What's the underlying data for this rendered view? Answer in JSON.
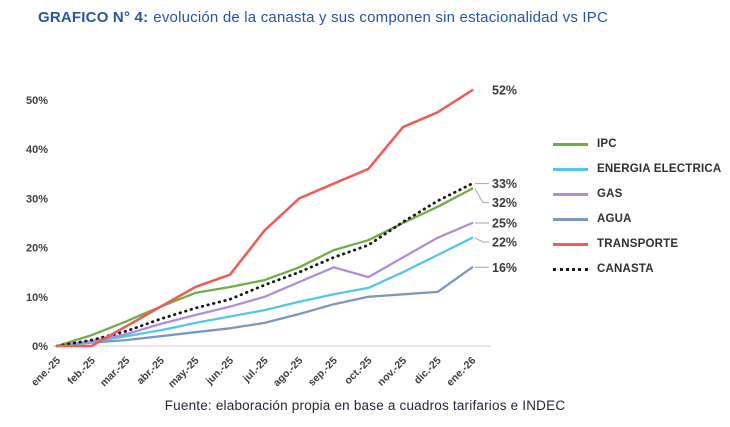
{
  "title": {
    "prefix": "GRAFICO N° 4:",
    "rest": "evolución de la canasta y sus componen sin estacionalidad vs IPC"
  },
  "footer": "Fuente: elaboración propia en base a cuadros tarifarios e INDEC",
  "colors": {
    "title_blue": "#2456a6",
    "axis_line": "#d8d8d8",
    "leader_line": "#a6a6a6",
    "tick_text": "#404040",
    "end_label_text": "#3b3b3b"
  },
  "chart_data": {
    "type": "line",
    "title": "GRAFICO N° 4: evolución de la canasta y sus componen sin estacionalidad vs IPC",
    "xlabel": "",
    "ylabel": "",
    "ylim": [
      0,
      55
    ],
    "grid": false,
    "legend_position": "right",
    "yticks": [
      "0%",
      "10%",
      "20%",
      "30%",
      "40%",
      "50%"
    ],
    "categories": [
      "ene.-25",
      "feb.-25",
      "mar.-25",
      "abr.-25",
      "may.-25",
      "jun.-25",
      "jul.-25",
      "ago.-25",
      "sep.-25",
      "oct.-25",
      "nov.-25",
      "dic.-25",
      "ene.-26"
    ],
    "series": [
      {
        "name": "IPC",
        "color": "#70ad47",
        "style": "solid",
        "end_label": "32%",
        "values": [
          0,
          2.2,
          5,
          8,
          10.8,
          12,
          13.4,
          16,
          19.5,
          21.5,
          25,
          28.3,
          32
        ]
      },
      {
        "name": "ENERGIA ELECTRICA",
        "color": "#54c6ea",
        "style": "solid",
        "end_label": "22%",
        "values": [
          0,
          0.8,
          2,
          3.2,
          4.7,
          6,
          7.3,
          9,
          10.5,
          11.8,
          15,
          18.5,
          22
        ]
      },
      {
        "name": "GAS",
        "color": "#b18cd9",
        "style": "solid",
        "end_label": "25%",
        "values": [
          0,
          1,
          2.4,
          4.5,
          6.3,
          8,
          10,
          13,
          16,
          14,
          18,
          22,
          25
        ]
      },
      {
        "name": "AGUA",
        "color": "#7c97c1",
        "style": "solid",
        "end_label": "16%",
        "values": [
          0,
          0.7,
          1.2,
          2,
          2.8,
          3.6,
          4.7,
          6.5,
          8.5,
          10,
          10.5,
          11,
          16
        ]
      },
      {
        "name": "TRANSPORTE",
        "color": "#ec5e57",
        "style": "solid",
        "end_label": "52%",
        "values": [
          0,
          0,
          4,
          8,
          12,
          14.5,
          23.5,
          30,
          33,
          36,
          44.5,
          47.5,
          52
        ]
      },
      {
        "name": "CANASTA",
        "color": "#1a1a1a",
        "style": "dotted",
        "end_label": "33%",
        "values": [
          0,
          1.2,
          3,
          5.5,
          7.7,
          9.5,
          12.4,
          15,
          18,
          20.5,
          25.2,
          29.5,
          33
        ]
      }
    ]
  }
}
